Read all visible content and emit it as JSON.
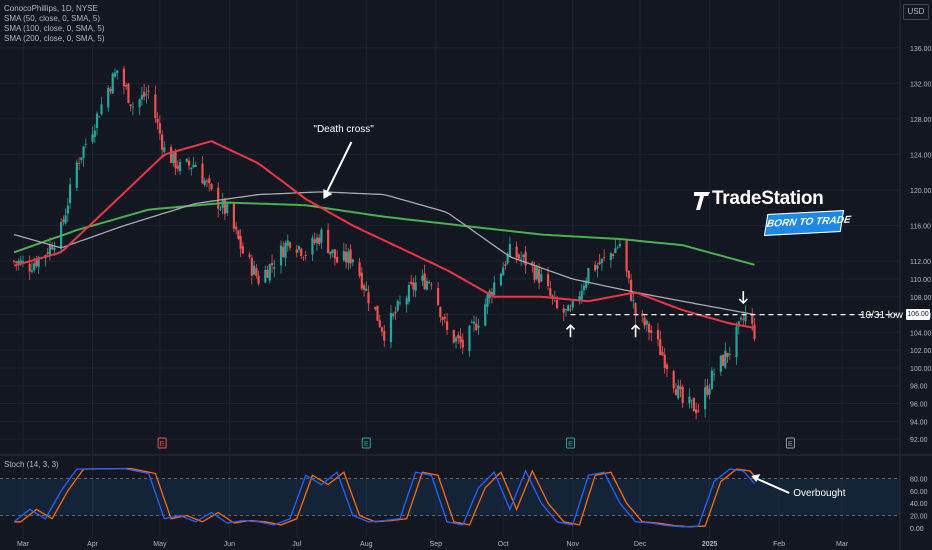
{
  "header": {
    "symbol": "ConocoPhillips, 1D, NYSE",
    "indicators": [
      "SMA (50, close, 0, SMA, 5)",
      "SMA (100, close, 0, SMA, 5)",
      "SMA (200, close, 0, SMA, 5)"
    ],
    "currency": "USD"
  },
  "lower_pane": {
    "label": "Stoch (14, 3, 3)"
  },
  "logo": {
    "name": "TradeStation",
    "tagline": "BORN TO TRADE"
  },
  "annotations": {
    "death_cross": "\"Death cross\"",
    "low_line": "10/31 low",
    "overbought": "Overbought"
  },
  "last_price_tag": "106.00",
  "colors": {
    "background": "#131722",
    "up_candle": "#26a69a",
    "down_candle": "#ef5350",
    "sma50": "#f23645",
    "sma100": "#a9a9b0",
    "sma200": "#4caf50",
    "stoch_k": "#2962ff",
    "stoch_d": "#ff6d00"
  },
  "chart_data": [
    {
      "type": "candlestick",
      "title": "ConocoPhillips, 1D, NYSE",
      "x_tick_labels": [
        "Mar",
        "Apr",
        "May",
        "Jun",
        "Jul",
        "Aug",
        "Sep",
        "Oct",
        "Nov",
        "Dec",
        "2025",
        "Feb",
        "Mar"
      ],
      "y_tick_labels": [
        92,
        94,
        96,
        98,
        100,
        102,
        104,
        106,
        108,
        110,
        112,
        116,
        120,
        124,
        128,
        132,
        136
      ],
      "ylim": [
        91,
        138
      ],
      "close_path": [
        [
          "2024-02-26",
          112.0
        ],
        [
          "2024-03-04",
          111.5
        ],
        [
          "2024-03-11",
          113.0
        ],
        [
          "2024-03-18",
          115.5
        ],
        [
          "2024-03-25",
          123.0
        ],
        [
          "2024-04-01",
          127.0
        ],
        [
          "2024-04-08",
          131.5
        ],
        [
          "2024-04-12",
          133.5
        ],
        [
          "2024-04-19",
          129.5
        ],
        [
          "2024-04-26",
          131.0
        ],
        [
          "2024-05-03",
          124.5
        ],
        [
          "2024-05-10",
          122.5
        ],
        [
          "2024-05-17",
          123.0
        ],
        [
          "2024-05-24",
          119.5
        ],
        [
          "2024-05-31",
          117.5
        ],
        [
          "2024-06-07",
          113.0
        ],
        [
          "2024-06-14",
          110.0
        ],
        [
          "2024-06-21",
          112.0
        ],
        [
          "2024-06-28",
          114.5
        ],
        [
          "2024-07-05",
          113.0
        ],
        [
          "2024-07-12",
          115.0
        ],
        [
          "2024-07-19",
          112.0
        ],
        [
          "2024-07-26",
          112.5
        ],
        [
          "2024-08-02",
          108.0
        ],
        [
          "2024-08-09",
          104.0
        ],
        [
          "2024-08-16",
          107.0
        ],
        [
          "2024-08-23",
          109.5
        ],
        [
          "2024-08-30",
          110.0
        ],
        [
          "2024-09-06",
          104.0
        ],
        [
          "2024-09-13",
          102.5
        ],
        [
          "2024-09-20",
          105.5
        ],
        [
          "2024-09-27",
          109.5
        ],
        [
          "2024-10-04",
          113.0
        ],
        [
          "2024-10-11",
          112.0
        ],
        [
          "2024-10-18",
          110.0
        ],
        [
          "2024-10-25",
          106.5
        ],
        [
          "2024-10-31",
          106.0
        ],
        [
          "2024-11-08",
          111.0
        ],
        [
          "2024-11-15",
          112.0
        ],
        [
          "2024-11-22",
          114.0
        ],
        [
          "2024-11-29",
          106.0
        ],
        [
          "2024-12-06",
          104.0
        ],
        [
          "2024-12-13",
          100.5
        ],
        [
          "2024-12-20",
          96.0
        ],
        [
          "2024-12-27",
          95.5
        ],
        [
          "2025-01-03",
          99.5
        ],
        [
          "2025-01-10",
          102.0
        ],
        [
          "2025-01-17",
          106.0
        ],
        [
          "2025-01-21",
          104.0
        ]
      ],
      "sma50_path": [
        [
          "2024-02-26",
          111.5
        ],
        [
          "2024-03-18",
          113.0
        ],
        [
          "2024-04-08",
          118.0
        ],
        [
          "2024-05-03",
          124.0
        ],
        [
          "2024-05-24",
          125.5
        ],
        [
          "2024-06-14",
          123.0
        ],
        [
          "2024-07-05",
          119.0
        ],
        [
          "2024-07-26",
          116.0
        ],
        [
          "2024-08-16",
          113.5
        ],
        [
          "2024-09-06",
          111.0
        ],
        [
          "2024-09-27",
          108.0
        ],
        [
          "2024-10-18",
          108.0
        ],
        [
          "2024-11-08",
          107.5
        ],
        [
          "2024-11-29",
          108.5
        ],
        [
          "2024-12-20",
          106.5
        ],
        [
          "2025-01-10",
          105.0
        ],
        [
          "2025-01-21",
          104.5
        ]
      ],
      "sma100_path": [
        [
          "2024-02-26",
          115.0
        ],
        [
          "2024-03-18",
          113.5
        ],
        [
          "2024-04-15",
          116.0
        ],
        [
          "2024-05-17",
          118.5
        ],
        [
          "2024-06-14",
          119.5
        ],
        [
          "2024-07-12",
          119.8
        ],
        [
          "2024-08-09",
          119.5
        ],
        [
          "2024-09-06",
          117.5
        ],
        [
          "2024-10-04",
          112.5
        ],
        [
          "2024-11-01",
          110.0
        ],
        [
          "2024-11-29",
          108.5
        ],
        [
          "2024-12-20",
          107.5
        ],
        [
          "2025-01-21",
          106.0
        ]
      ],
      "sma200_path": [
        [
          "2024-02-26",
          113.0
        ],
        [
          "2024-03-25",
          115.5
        ],
        [
          "2024-04-26",
          117.8
        ],
        [
          "2024-05-31",
          118.6
        ],
        [
          "2024-07-05",
          118.3
        ],
        [
          "2024-08-09",
          117.0
        ],
        [
          "2024-09-13",
          116.0
        ],
        [
          "2024-10-18",
          115.0
        ],
        [
          "2024-11-22",
          114.5
        ],
        [
          "2024-12-20",
          113.8
        ],
        [
          "2025-01-21",
          111.6
        ]
      ],
      "horizontal_level": {
        "label": "10/31 low",
        "value": 106.0
      },
      "event_markers": [
        {
          "label": "E",
          "date": "2024-05-02",
          "color": "#ef5350"
        },
        {
          "label": "E",
          "date": "2024-08-01",
          "color": "#26a69a"
        },
        {
          "label": "E",
          "date": "2024-10-31",
          "color": "#26a69a"
        },
        {
          "label": "E",
          "date": "2025-02-06",
          "color": "#9598a1"
        }
      ],
      "arrows_up_dates": [
        "2024-10-31",
        "2024-11-29"
      ],
      "arrow_down_date": "2025-01-16",
      "annotation_death_cross_date": "2024-07-12"
    },
    {
      "type": "line",
      "title": "Stoch (14, 3, 3)",
      "y_tick_labels": [
        0.0,
        20.0,
        40.0,
        60.0,
        80.0
      ],
      "ylim": [
        0,
        100
      ],
      "bands": [
        20,
        80
      ],
      "k_path": [
        [
          "2024-02-26",
          10
        ],
        [
          "2024-03-04",
          30
        ],
        [
          "2024-03-11",
          15
        ],
        [
          "2024-03-18",
          60
        ],
        [
          "2024-03-25",
          95
        ],
        [
          "2024-04-15",
          96
        ],
        [
          "2024-04-26",
          88
        ],
        [
          "2024-05-03",
          15
        ],
        [
          "2024-05-10",
          20
        ],
        [
          "2024-05-17",
          10
        ],
        [
          "2024-05-24",
          25
        ],
        [
          "2024-05-31",
          8
        ],
        [
          "2024-06-07",
          12
        ],
        [
          "2024-06-14",
          10
        ],
        [
          "2024-06-21",
          5
        ],
        [
          "2024-06-28",
          15
        ],
        [
          "2024-07-05",
          85
        ],
        [
          "2024-07-12",
          70
        ],
        [
          "2024-07-19",
          90
        ],
        [
          "2024-07-26",
          20
        ],
        [
          "2024-08-02",
          10
        ],
        [
          "2024-08-09",
          12
        ],
        [
          "2024-08-16",
          15
        ],
        [
          "2024-08-23",
          90
        ],
        [
          "2024-08-30",
          85
        ],
        [
          "2024-09-06",
          10
        ],
        [
          "2024-09-13",
          5
        ],
        [
          "2024-09-20",
          65
        ],
        [
          "2024-09-27",
          90
        ],
        [
          "2024-10-04",
          30
        ],
        [
          "2024-10-11",
          92
        ],
        [
          "2024-10-18",
          40
        ],
        [
          "2024-10-25",
          10
        ],
        [
          "2024-11-01",
          5
        ],
        [
          "2024-11-08",
          85
        ],
        [
          "2024-11-15",
          90
        ],
        [
          "2024-11-22",
          40
        ],
        [
          "2024-11-29",
          10
        ],
        [
          "2024-12-06",
          8
        ],
        [
          "2024-12-13",
          4
        ],
        [
          "2024-12-20",
          2
        ],
        [
          "2024-12-27",
          3
        ],
        [
          "2025-01-03",
          75
        ],
        [
          "2025-01-10",
          95
        ],
        [
          "2025-01-16",
          92
        ],
        [
          "2025-01-21",
          72
        ]
      ],
      "annotation_overbought_date": "2025-01-16"
    }
  ]
}
